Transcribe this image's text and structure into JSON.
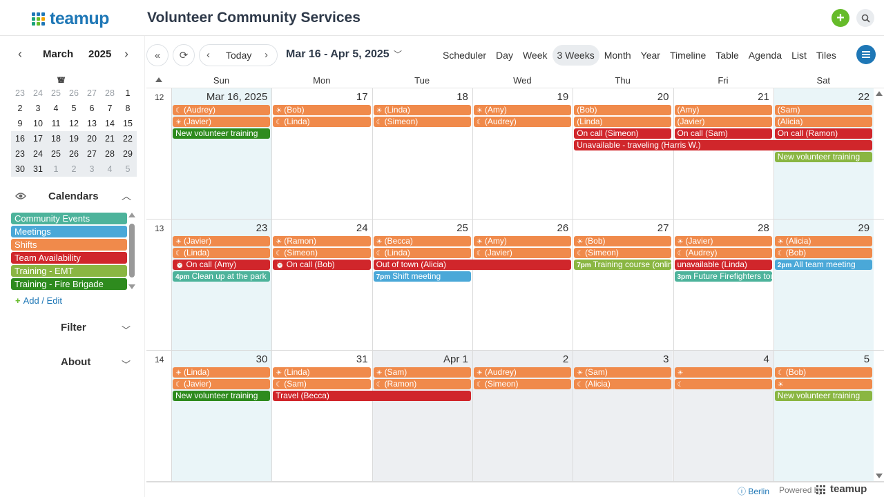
{
  "header": {
    "brand": "teamup",
    "title": "Volunteer Community Services",
    "add_icon": "plus-icon",
    "search_icon": "search-icon",
    "brand_colors": [
      "#1e77b6",
      "#66bb2a",
      "#1aa37a",
      "#f0a500"
    ]
  },
  "mini_calendar": {
    "month": "March",
    "year": "2025",
    "prev": "‹",
    "next": "›",
    "dow": [
      "S",
      "M",
      "T",
      "W",
      "T",
      "F",
      "S"
    ],
    "weeks": [
      [
        "23",
        "24",
        "25",
        "26",
        "27",
        "28",
        "1"
      ],
      [
        "2",
        "3",
        "4",
        "5",
        "6",
        "7",
        "8"
      ],
      [
        "9",
        "10",
        "11",
        "12",
        "13",
        "14",
        "15"
      ],
      [
        "16",
        "17",
        "18",
        "19",
        "20",
        "21",
        "22"
      ],
      [
        "23",
        "24",
        "25",
        "26",
        "27",
        "28",
        "29"
      ],
      [
        "30",
        "31",
        "1",
        "2",
        "3",
        "4",
        "5"
      ]
    ]
  },
  "calendars": {
    "label": "Calendars",
    "items": [
      {
        "label": "Community Events",
        "color": "#4db39b"
      },
      {
        "label": "Meetings",
        "color": "#4aa8d8"
      },
      {
        "label": "Shifts",
        "color": "#f08a4b"
      },
      {
        "label": "Team Availability",
        "color": "#d0262b"
      },
      {
        "label": "Training - EMT",
        "color": "#8ab642"
      },
      {
        "label": "Training - Fire Brigade",
        "color": "#2e8b1e"
      }
    ],
    "add_edit": "Add / Edit"
  },
  "sections": {
    "filter": "Filter",
    "about": "About"
  },
  "toolbar": {
    "today": "Today",
    "date_range": "Mar 16 - Apr 5, 2025",
    "views": [
      "Scheduler",
      "Day",
      "Week",
      "3 Weeks",
      "Month",
      "Year",
      "Timeline",
      "Table",
      "Agenda",
      "List",
      "Tiles"
    ],
    "active_view": "3 Weeks"
  },
  "grid": {
    "dow": [
      "Sun",
      "Mon",
      "Tue",
      "Wed",
      "Thu",
      "Fri",
      "Sat"
    ],
    "weeks": [
      {
        "number": "12",
        "days": [
          "Mar 16, 2025",
          "17",
          "18",
          "19",
          "20",
          "21",
          "22"
        ],
        "events": [
          {
            "col": 0,
            "span": 1,
            "row": 0,
            "label": "(Audrey)",
            "color": "#f08a4b",
            "icon": "moon"
          },
          {
            "col": 0,
            "span": 1,
            "row": 1,
            "label": "(Javier)",
            "color": "#f08a4b",
            "icon": "sun"
          },
          {
            "col": 0,
            "span": 1,
            "row": 2,
            "label": "New volunteer training",
            "color": "#2e8b1e"
          },
          {
            "col": 1,
            "span": 1,
            "row": 0,
            "label": "(Bob)",
            "color": "#f08a4b",
            "icon": "sun"
          },
          {
            "col": 1,
            "span": 1,
            "row": 1,
            "label": "(Linda)",
            "color": "#f08a4b",
            "icon": "moon"
          },
          {
            "col": 2,
            "span": 1,
            "row": 0,
            "label": "(Linda)",
            "color": "#f08a4b",
            "icon": "sun"
          },
          {
            "col": 2,
            "span": 1,
            "row": 1,
            "label": "(Simeon)",
            "color": "#f08a4b",
            "icon": "moon"
          },
          {
            "col": 3,
            "span": 1,
            "row": 0,
            "label": "(Amy)",
            "color": "#f08a4b",
            "icon": "sun"
          },
          {
            "col": 3,
            "span": 1,
            "row": 1,
            "label": "(Audrey)",
            "color": "#f08a4b",
            "icon": "moon"
          },
          {
            "col": 4,
            "span": 1,
            "row": 0,
            "label": "(Bob)",
            "color": "#f08a4b"
          },
          {
            "col": 4,
            "span": 1,
            "row": 1,
            "label": "(Linda)",
            "color": "#f08a4b"
          },
          {
            "col": 4,
            "span": 1,
            "row": 2,
            "label": "On call (Simeon)",
            "color": "#d0262b"
          },
          {
            "col": 4,
            "span": 3,
            "row": 3,
            "label": "Unavailable - traveling (Harris W.)",
            "color": "#d0262b"
          },
          {
            "col": 5,
            "span": 1,
            "row": 0,
            "label": "(Amy)",
            "color": "#f08a4b"
          },
          {
            "col": 5,
            "span": 1,
            "row": 1,
            "label": "(Javier)",
            "color": "#f08a4b"
          },
          {
            "col": 5,
            "span": 1,
            "row": 2,
            "label": "On call (Sam)",
            "color": "#d0262b"
          },
          {
            "col": 6,
            "span": 1,
            "row": 0,
            "label": "(Sam)",
            "color": "#f08a4b"
          },
          {
            "col": 6,
            "span": 1,
            "row": 1,
            "label": "(Alicia)",
            "color": "#f08a4b"
          },
          {
            "col": 6,
            "span": 1,
            "row": 2,
            "label": "On call (Ramon)",
            "color": "#d0262b"
          },
          {
            "col": 6,
            "span": 1,
            "row": 4,
            "label": "New volunteer training",
            "color": "#8ab642"
          }
        ]
      },
      {
        "number": "13",
        "days": [
          "23",
          "24",
          "25",
          "26",
          "27",
          "28",
          "29"
        ],
        "events": [
          {
            "col": 0,
            "span": 1,
            "row": 0,
            "label": "(Javier)",
            "color": "#f08a4b",
            "icon": "sun"
          },
          {
            "col": 0,
            "span": 1,
            "row": 1,
            "label": "(Linda)",
            "color": "#f08a4b",
            "icon": "moon"
          },
          {
            "col": 0,
            "span": 1,
            "row": 2,
            "label": "On call (Amy)",
            "color": "#d0262b",
            "icon": "alarm"
          },
          {
            "col": 0,
            "span": 1,
            "row": 3,
            "label": "Clean up at the park",
            "color": "#4db39b",
            "time": "4pm"
          },
          {
            "col": 1,
            "span": 1,
            "row": 0,
            "label": "(Ramon)",
            "color": "#f08a4b",
            "icon": "sun"
          },
          {
            "col": 1,
            "span": 1,
            "row": 1,
            "label": "(Simeon)",
            "color": "#f08a4b",
            "icon": "moon"
          },
          {
            "col": 1,
            "span": 1,
            "row": 2,
            "label": "On call (Bob)",
            "color": "#d0262b",
            "icon": "alarm"
          },
          {
            "col": 2,
            "span": 1,
            "row": 0,
            "label": "(Becca)",
            "color": "#f08a4b",
            "icon": "sun"
          },
          {
            "col": 2,
            "span": 1,
            "row": 1,
            "label": "(Linda)",
            "color": "#f08a4b",
            "icon": "moon"
          },
          {
            "col": 2,
            "span": 2,
            "row": 2,
            "label": "Out of town (Alicia)",
            "color": "#d0262b"
          },
          {
            "col": 2,
            "span": 1,
            "row": 3,
            "label": "Shift meeting",
            "color": "#4aa8d8",
            "time": "7pm"
          },
          {
            "col": 3,
            "span": 1,
            "row": 0,
            "label": "(Amy)",
            "color": "#f08a4b",
            "icon": "sun"
          },
          {
            "col": 3,
            "span": 1,
            "row": 1,
            "label": "(Javier)",
            "color": "#f08a4b",
            "icon": "moon"
          },
          {
            "col": 4,
            "span": 1,
            "row": 0,
            "label": "(Bob)",
            "color": "#f08a4b",
            "icon": "sun"
          },
          {
            "col": 4,
            "span": 1,
            "row": 1,
            "label": "(Simeon)",
            "color": "#f08a4b",
            "icon": "moon"
          },
          {
            "col": 4,
            "span": 1,
            "row": 2,
            "label": "Training course (onlin",
            "color": "#8ab642",
            "time": "7pm"
          },
          {
            "col": 5,
            "span": 1,
            "row": 0,
            "label": "(Javier)",
            "color": "#f08a4b",
            "icon": "sun"
          },
          {
            "col": 5,
            "span": 1,
            "row": 1,
            "label": "(Audrey)",
            "color": "#f08a4b",
            "icon": "moon"
          },
          {
            "col": 5,
            "span": 1,
            "row": 2,
            "label": "unavailable (Linda)",
            "color": "#d0262b"
          },
          {
            "col": 5,
            "span": 1,
            "row": 3,
            "label": "Future Firefighters tou",
            "color": "#4db39b",
            "time": "3pm"
          },
          {
            "col": 6,
            "span": 1,
            "row": 0,
            "label": "(Alicia)",
            "color": "#f08a4b",
            "icon": "sun"
          },
          {
            "col": 6,
            "span": 1,
            "row": 1,
            "label": "(Bob)",
            "color": "#f08a4b",
            "icon": "moon"
          },
          {
            "col": 6,
            "span": 1,
            "row": 2,
            "label": "All team meeting",
            "color": "#4aa8d8",
            "time": "2pm"
          }
        ]
      },
      {
        "number": "14",
        "days": [
          "30",
          "31",
          "Apr 1",
          "2",
          "3",
          "4",
          "5"
        ],
        "events": [
          {
            "col": 0,
            "span": 1,
            "row": 0,
            "label": "(Linda)",
            "color": "#f08a4b",
            "icon": "sun"
          },
          {
            "col": 0,
            "span": 1,
            "row": 1,
            "label": "(Javier)",
            "color": "#f08a4b",
            "icon": "moon"
          },
          {
            "col": 0,
            "span": 1,
            "row": 2,
            "label": "New volunteer training",
            "color": "#2e8b1e"
          },
          {
            "col": 1,
            "span": 1,
            "row": 0,
            "label": "(Linda)",
            "color": "#f08a4b",
            "icon": "sun"
          },
          {
            "col": 1,
            "span": 1,
            "row": 1,
            "label": "(Sam)",
            "color": "#f08a4b",
            "icon": "moon"
          },
          {
            "col": 1,
            "span": 2,
            "row": 2,
            "label": "Travel (Becca)",
            "color": "#d0262b"
          },
          {
            "col": 2,
            "span": 1,
            "row": 0,
            "label": "(Sam)",
            "color": "#f08a4b",
            "icon": "sun"
          },
          {
            "col": 2,
            "span": 1,
            "row": 1,
            "label": "(Ramon)",
            "color": "#f08a4b",
            "icon": "moon"
          },
          {
            "col": 3,
            "span": 1,
            "row": 0,
            "label": "(Audrey)",
            "color": "#f08a4b",
            "icon": "sun"
          },
          {
            "col": 3,
            "span": 1,
            "row": 1,
            "label": "(Simeon)",
            "color": "#f08a4b",
            "icon": "moon"
          },
          {
            "col": 4,
            "span": 1,
            "row": 0,
            "label": "(Sam)",
            "color": "#f08a4b",
            "icon": "sun"
          },
          {
            "col": 4,
            "span": 1,
            "row": 1,
            "label": "(Alicia)",
            "color": "#f08a4b",
            "icon": "moon"
          },
          {
            "col": 5,
            "span": 1,
            "row": 0,
            "label": "",
            "color": "#f08a4b",
            "icon": "sun"
          },
          {
            "col": 5,
            "span": 1,
            "row": 1,
            "label": "",
            "color": "#f08a4b",
            "icon": "moon"
          },
          {
            "col": 6,
            "span": 1,
            "row": 0,
            "label": "(Bob)",
            "color": "#f08a4b",
            "icon": "moon"
          },
          {
            "col": 6,
            "span": 1,
            "row": 1,
            "label": "",
            "color": "#f08a4b",
            "icon": "sun"
          },
          {
            "col": 6,
            "span": 1,
            "row": 2,
            "label": "New volunteer training",
            "color": "#8ab642"
          }
        ]
      }
    ]
  },
  "footer": {
    "timezone": "Berlin",
    "powered_by": "Powered by",
    "brand": "teamup"
  }
}
